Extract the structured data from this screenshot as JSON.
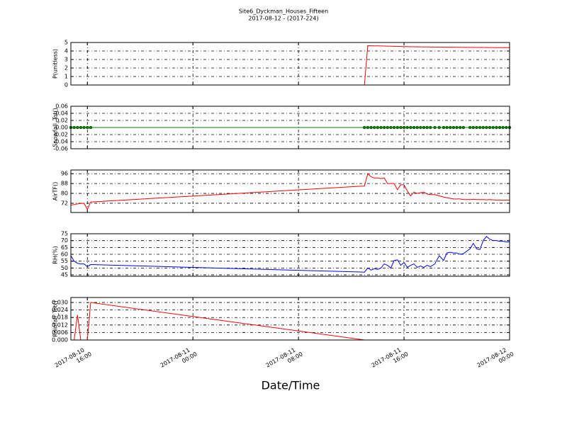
{
  "figure": {
    "title": "Site6_Dyckman_Houses_Fifteen",
    "subtitle": "2017-08-12 - (2017-224)",
    "xlabel": "Date/Time"
  },
  "chart_data": [
    {
      "type": "line",
      "ylabel": "P(unitless)",
      "x": [
        "2017-08-10 14:45",
        "2017-08-10 15:00",
        "2017-08-10 15:15",
        "2017-08-10 15:30",
        "2017-08-10 15:45",
        "2017-08-10 16:00",
        "2017-08-10 16:15",
        "2017-08-11 13:00",
        "2017-08-11 13:15",
        "2017-08-11 13:30",
        "2017-08-11 13:45",
        "2017-08-11 14:00",
        "2017-08-11 14:15",
        "2017-08-11 14:30",
        "2017-08-11 14:45",
        "2017-08-11 15:00",
        "2017-08-11 15:15",
        "2017-08-11 15:30",
        "2017-08-11 15:45",
        "2017-08-11 16:00",
        "2017-08-11 16:15",
        "2017-08-11 16:30",
        "2017-08-11 16:45",
        "2017-08-11 17:00",
        "2017-08-11 17:15",
        "2017-08-11 17:30",
        "2017-08-11 17:45",
        "2017-08-11 18:00",
        "2017-08-11 18:20",
        "2017-08-11 18:40",
        "2017-08-11 19:00",
        "2017-08-11 19:15",
        "2017-08-11 19:30",
        "2017-08-11 19:45",
        "2017-08-11 20:00",
        "2017-08-11 20:15",
        "2017-08-11 20:30",
        "2017-08-11 21:00",
        "2017-08-11 21:15",
        "2017-08-11 21:30",
        "2017-08-11 21:45",
        "2017-08-11 22:00",
        "2017-08-11 22:15",
        "2017-08-11 22:30",
        "2017-08-11 22:45",
        "2017-08-11 23:00",
        "2017-08-11 23:15",
        "2017-08-11 23:30",
        "2017-08-11 23:45",
        "2017-08-12 00:00"
      ],
      "series": [
        {
          "color": "#ff0000",
          "values": [
            0,
            0,
            0,
            0,
            0,
            0,
            0,
            0,
            4.62,
            4.61,
            4.6,
            4.6,
            4.59,
            4.58,
            4.57,
            4.56,
            4.55,
            4.54,
            4.53,
            4.52,
            4.51,
            4.5,
            4.5,
            4.49,
            4.49,
            4.48,
            4.48,
            4.47,
            4.47,
            4.46,
            4.46,
            4.45,
            4.45,
            4.45,
            4.44,
            4.44,
            4.43,
            4.43,
            4.43,
            4.42,
            4.42,
            4.42,
            4.41,
            4.41,
            4.41,
            4.4,
            4.4,
            4.4,
            4.4,
            4.4
          ]
        }
      ],
      "xlim": [
        "2017-08-10 14:45",
        "2017-08-12 00:00"
      ],
      "xticks": [
        "2017-08-10 16:00",
        "2017-08-11 00:00",
        "2017-08-11 08:00",
        "2017-08-11 16:00",
        "2017-08-12 00:00"
      ],
      "ylim": [
        0,
        5
      ],
      "yticks": [
        0,
        1,
        2,
        3,
        4,
        5
      ],
      "grid": true
    },
    {
      "type": "line",
      "ylabel": "Snowfall_Tot()",
      "x": [
        "2017-08-10 14:45",
        "2017-08-10 15:00",
        "2017-08-10 15:15",
        "2017-08-10 15:30",
        "2017-08-10 15:45",
        "2017-08-10 16:00",
        "2017-08-10 16:15",
        "2017-08-11 13:00",
        "2017-08-11 13:15",
        "2017-08-11 13:30",
        "2017-08-11 13:45",
        "2017-08-11 14:00",
        "2017-08-11 14:15",
        "2017-08-11 14:30",
        "2017-08-11 14:45",
        "2017-08-11 15:00",
        "2017-08-11 15:15",
        "2017-08-11 15:30",
        "2017-08-11 15:45",
        "2017-08-11 16:00",
        "2017-08-11 16:15",
        "2017-08-11 16:30",
        "2017-08-11 16:45",
        "2017-08-11 17:00",
        "2017-08-11 17:15",
        "2017-08-11 17:30",
        "2017-08-11 17:45",
        "2017-08-11 18:00",
        "2017-08-11 18:20",
        "2017-08-11 18:40",
        "2017-08-11 19:00",
        "2017-08-11 19:15",
        "2017-08-11 19:30",
        "2017-08-11 19:45",
        "2017-08-11 20:00",
        "2017-08-11 20:15",
        "2017-08-11 20:30",
        "2017-08-11 21:00",
        "2017-08-11 21:15",
        "2017-08-11 21:30",
        "2017-08-11 21:45",
        "2017-08-11 22:00",
        "2017-08-11 22:15",
        "2017-08-11 22:30",
        "2017-08-11 22:45",
        "2017-08-11 23:00",
        "2017-08-11 23:15",
        "2017-08-11 23:30",
        "2017-08-11 23:45",
        "2017-08-12 00:00"
      ],
      "series": [
        {
          "color": "#008000",
          "marker": "o",
          "values": [
            0,
            0,
            0,
            0,
            0,
            0,
            0,
            0,
            0,
            0,
            0,
            0,
            0,
            0,
            0,
            0,
            0,
            0,
            0,
            0,
            0,
            0,
            0,
            0,
            0,
            0,
            0,
            0,
            0,
            0,
            0,
            0,
            0,
            0,
            0,
            0,
            0,
            0,
            0,
            0,
            0,
            0,
            0,
            0,
            0,
            0,
            0,
            0,
            0,
            0
          ]
        }
      ],
      "xlim": [
        "2017-08-10 14:45",
        "2017-08-12 00:00"
      ],
      "xticks": [
        "2017-08-10 16:00",
        "2017-08-11 00:00",
        "2017-08-11 08:00",
        "2017-08-11 16:00",
        "2017-08-12 00:00"
      ],
      "ylim": [
        -0.06,
        0.06
      ],
      "yticks": [
        -0.06,
        -0.04,
        -0.02,
        {
          "value": 0,
          "label": "0.00"
        },
        0.02,
        0.04,
        0.06
      ],
      "grid": true
    },
    {
      "type": "line",
      "ylabel": "AirTF()",
      "x": [
        "2017-08-10 14:45",
        "2017-08-10 15:00",
        "2017-08-10 15:15",
        "2017-08-10 15:30",
        "2017-08-10 15:45",
        "2017-08-10 16:00",
        "2017-08-10 16:15",
        "2017-08-11 13:00",
        "2017-08-11 13:15",
        "2017-08-11 13:30",
        "2017-08-11 13:45",
        "2017-08-11 14:00",
        "2017-08-11 14:15",
        "2017-08-11 14:30",
        "2017-08-11 14:45",
        "2017-08-11 15:00",
        "2017-08-11 15:15",
        "2017-08-11 15:30",
        "2017-08-11 15:45",
        "2017-08-11 16:00",
        "2017-08-11 16:15",
        "2017-08-11 16:30",
        "2017-08-11 16:45",
        "2017-08-11 17:00",
        "2017-08-11 17:15",
        "2017-08-11 17:30",
        "2017-08-11 17:45",
        "2017-08-11 18:00",
        "2017-08-11 18:20",
        "2017-08-11 18:40",
        "2017-08-11 19:00",
        "2017-08-11 19:15",
        "2017-08-11 19:30",
        "2017-08-11 19:45",
        "2017-08-11 20:00",
        "2017-08-11 20:15",
        "2017-08-11 20:30",
        "2017-08-11 21:00",
        "2017-08-11 21:15",
        "2017-08-11 21:30",
        "2017-08-11 21:45",
        "2017-08-11 22:00",
        "2017-08-11 22:15",
        "2017-08-11 22:30",
        "2017-08-11 22:45",
        "2017-08-11 23:00",
        "2017-08-11 23:15",
        "2017-08-11 23:30",
        "2017-08-11 23:45",
        "2017-08-12 00:00"
      ],
      "series": [
        {
          "color": "#ff0000",
          "values": [
            70.5,
            71,
            71.5,
            71.8,
            72,
            67,
            73,
            86,
            96,
            93.5,
            92.5,
            92.5,
            92,
            92.5,
            88,
            88,
            88,
            83,
            87,
            87,
            82,
            78,
            81,
            80,
            80.5,
            81,
            79.5,
            79,
            79,
            78,
            77,
            76.5,
            76,
            75.5,
            75.5,
            75.5,
            75,
            75,
            75.2,
            75,
            75,
            75,
            74.8,
            75,
            74.8,
            74.6,
            74.6,
            74.5,
            74.6,
            74.5
          ]
        }
      ],
      "xlim": [
        "2017-08-10 14:45",
        "2017-08-12 00:00"
      ],
      "xticks": [
        "2017-08-10 16:00",
        "2017-08-11 00:00",
        "2017-08-11 08:00",
        "2017-08-11 16:00",
        "2017-08-12 00:00"
      ],
      "ylim": [
        64.5,
        99
      ],
      "yticks": [
        72,
        80,
        88,
        96
      ],
      "grid": true
    },
    {
      "type": "line",
      "ylabel": "RH(%)",
      "x": [
        "2017-08-10 14:45",
        "2017-08-10 15:00",
        "2017-08-10 15:15",
        "2017-08-10 15:30",
        "2017-08-10 15:45",
        "2017-08-10 16:00",
        "2017-08-10 16:15",
        "2017-08-11 13:00",
        "2017-08-11 13:15",
        "2017-08-11 13:30",
        "2017-08-11 13:45",
        "2017-08-11 14:00",
        "2017-08-11 14:15",
        "2017-08-11 14:30",
        "2017-08-11 14:45",
        "2017-08-11 15:00",
        "2017-08-11 15:15",
        "2017-08-11 15:30",
        "2017-08-11 15:45",
        "2017-08-11 16:00",
        "2017-08-11 16:15",
        "2017-08-11 16:30",
        "2017-08-11 16:45",
        "2017-08-11 17:00",
        "2017-08-11 17:15",
        "2017-08-11 17:30",
        "2017-08-11 17:45",
        "2017-08-11 18:00",
        "2017-08-11 18:20",
        "2017-08-11 18:40",
        "2017-08-11 19:00",
        "2017-08-11 19:15",
        "2017-08-11 19:30",
        "2017-08-11 19:45",
        "2017-08-11 20:00",
        "2017-08-11 20:15",
        "2017-08-11 20:30",
        "2017-08-11 21:00",
        "2017-08-11 21:15",
        "2017-08-11 21:30",
        "2017-08-11 21:45",
        "2017-08-11 22:00",
        "2017-08-11 22:15",
        "2017-08-11 22:30",
        "2017-08-11 22:45",
        "2017-08-11 23:00",
        "2017-08-11 23:15",
        "2017-08-11 23:30",
        "2017-08-11 23:45",
        "2017-08-12 00:00"
      ],
      "series": [
        {
          "color": "#0000ff",
          "values": [
            59,
            55,
            53.5,
            53,
            53,
            51,
            52.5,
            47,
            50,
            48.5,
            49.5,
            49,
            50,
            53,
            52,
            50,
            55.5,
            56,
            52,
            54,
            50.5,
            52,
            53,
            50.5,
            51.5,
            50.5,
            52,
            51,
            53,
            59,
            55.5,
            61,
            61.5,
            61,
            61,
            60,
            60.5,
            64,
            68,
            64,
            63.5,
            70,
            73,
            71,
            70,
            70,
            69.5,
            69.5,
            69,
            69
          ]
        }
      ],
      "xlim": [
        "2017-08-10 14:45",
        "2017-08-12 00:00"
      ],
      "xticks": [
        "2017-08-10 16:00",
        "2017-08-11 00:00",
        "2017-08-11 08:00",
        "2017-08-11 16:00",
        "2017-08-12 00:00"
      ],
      "ylim": [
        44,
        75
      ],
      "yticks": [
        45,
        50,
        55,
        60,
        65,
        70,
        75
      ],
      "grid": true
    },
    {
      "type": "line",
      "ylabel": "Rainfall_Tot()",
      "x": [
        "2017-08-10 14:45",
        "2017-08-10 15:00",
        "2017-08-10 15:15",
        "2017-08-10 15:30",
        "2017-08-10 15:45",
        "2017-08-10 16:00",
        "2017-08-10 16:15",
        "2017-08-11 13:00",
        "2017-08-11 13:15",
        "2017-08-11 13:30",
        "2017-08-11 13:45",
        "2017-08-11 14:00",
        "2017-08-11 14:15",
        "2017-08-11 14:30",
        "2017-08-11 14:45",
        "2017-08-11 15:00",
        "2017-08-11 15:15",
        "2017-08-11 15:30",
        "2017-08-11 15:45",
        "2017-08-11 16:00",
        "2017-08-11 16:15",
        "2017-08-11 16:30",
        "2017-08-11 16:45",
        "2017-08-11 17:00",
        "2017-08-11 17:15",
        "2017-08-11 17:30",
        "2017-08-11 17:45",
        "2017-08-11 18:00",
        "2017-08-11 18:20",
        "2017-08-11 18:40",
        "2017-08-11 19:00",
        "2017-08-11 19:15",
        "2017-08-11 19:30",
        "2017-08-11 19:45",
        "2017-08-11 20:00",
        "2017-08-11 20:15",
        "2017-08-11 20:30",
        "2017-08-11 21:00",
        "2017-08-11 21:15",
        "2017-08-11 21:30",
        "2017-08-11 21:45",
        "2017-08-11 22:00",
        "2017-08-11 22:15",
        "2017-08-11 22:30",
        "2017-08-11 22:45",
        "2017-08-11 23:00",
        "2017-08-11 23:15",
        "2017-08-11 23:30",
        "2017-08-11 23:45",
        "2017-08-12 00:00"
      ],
      "series": [
        {
          "color": "#ff0000",
          "values": [
            0,
            0,
            0.02,
            0,
            0,
            0,
            0.03,
            0,
            0,
            0,
            0,
            0,
            0,
            0,
            0,
            0,
            0,
            0,
            0,
            0,
            0,
            0,
            0,
            0,
            0,
            0,
            0,
            0,
            0,
            0,
            0,
            0,
            0,
            0,
            0,
            0,
            0,
            0,
            0,
            0,
            0,
            0,
            0,
            0,
            0,
            0,
            0,
            0,
            0,
            0
          ]
        }
      ],
      "xlim": [
        "2017-08-10 14:45",
        "2017-08-12 00:00"
      ],
      "xticks": [
        {
          "value": "2017-08-10 16:00",
          "label": [
            "2017-08-10",
            "16:00"
          ]
        },
        {
          "value": "2017-08-11 00:00",
          "label": [
            "2017-08-11",
            "00:00"
          ]
        },
        {
          "value": "2017-08-11 08:00",
          "label": [
            "2017-08-11",
            "08:00"
          ]
        },
        {
          "value": "2017-08-11 16:00",
          "label": [
            "2017-08-11",
            "16:00"
          ]
        },
        {
          "value": "2017-08-12 00:00",
          "label": [
            "2017-08-12",
            "00:00"
          ]
        }
      ],
      "ylim": [
        0,
        0.034
      ],
      "yticks": [
        {
          "value": 0,
          "label": "0.000"
        },
        0.006,
        0.012,
        0.018,
        0.024,
        {
          "value": 0.03,
          "label": "0.030"
        }
      ],
      "grid": true
    }
  ]
}
